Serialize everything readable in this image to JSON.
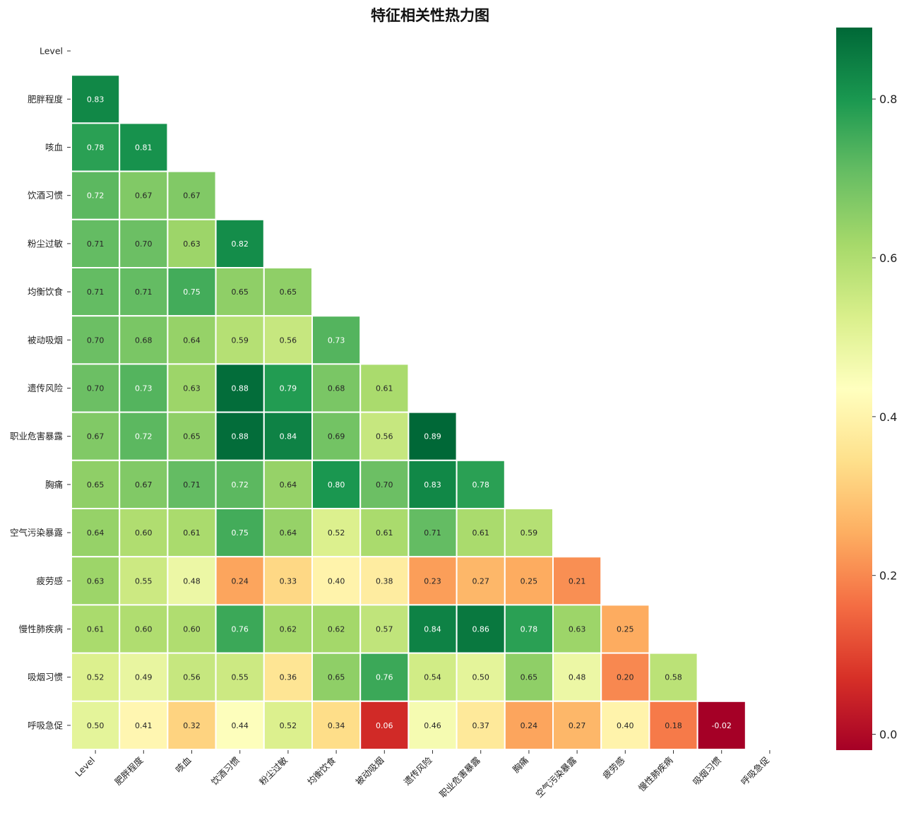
{
  "chart_data": {
    "type": "heatmap",
    "title": "特征相关性热力图",
    "variables": [
      "Level",
      "肥胖程度",
      "咳血",
      "饮酒习惯",
      "粉尘过敏",
      "均衡饮食",
      "被动吸烟",
      "遗传风险",
      "职业危害暴露",
      "胸痛",
      "空气污染暴露",
      "疲劳感",
      "慢性肺疾病",
      "吸烟习惯",
      "呼吸急促"
    ],
    "lower_triangle": [
      [],
      [
        0.83
      ],
      [
        0.78,
        0.81
      ],
      [
        0.72,
        0.67,
        0.67
      ],
      [
        0.71,
        0.7,
        0.63,
        0.82
      ],
      [
        0.71,
        0.71,
        0.75,
        0.65,
        0.65
      ],
      [
        0.7,
        0.68,
        0.64,
        0.59,
        0.56,
        0.73
      ],
      [
        0.7,
        0.73,
        0.63,
        0.88,
        0.79,
        0.68,
        0.61
      ],
      [
        0.67,
        0.72,
        0.65,
        0.88,
        0.84,
        0.69,
        0.56,
        0.89
      ],
      [
        0.65,
        0.67,
        0.71,
        0.72,
        0.64,
        0.8,
        0.7,
        0.83,
        0.78
      ],
      [
        0.64,
        0.6,
        0.61,
        0.75,
        0.64,
        0.52,
        0.61,
        0.71,
        0.61,
        0.59
      ],
      [
        0.63,
        0.55,
        0.48,
        0.24,
        0.33,
        0.4,
        0.38,
        0.23,
        0.27,
        0.25,
        0.21
      ],
      [
        0.61,
        0.6,
        0.6,
        0.76,
        0.62,
        0.62,
        0.57,
        0.84,
        0.86,
        0.78,
        0.63,
        0.25
      ],
      [
        0.52,
        0.49,
        0.56,
        0.55,
        0.36,
        0.65,
        0.76,
        0.54,
        0.5,
        0.65,
        0.48,
        0.2,
        0.58
      ],
      [
        0.5,
        0.41,
        0.32,
        0.44,
        0.52,
        0.34,
        0.06,
        0.46,
        0.37,
        0.24,
        0.27,
        0.4,
        0.18,
        -0.02
      ]
    ],
    "value_format": "0.00",
    "colormap": "RdYlGn",
    "color_range": [
      -0.02,
      0.89
    ],
    "colorbar_ticks": [
      "0.0",
      "0.2",
      "0.4",
      "0.6",
      "0.8"
    ],
    "colorbar_tick_values": [
      0.0,
      0.2,
      0.4,
      0.6,
      0.8
    ],
    "colorbar_placement": "right",
    "masked": "upper triangle and diagonal",
    "grid": false
  }
}
